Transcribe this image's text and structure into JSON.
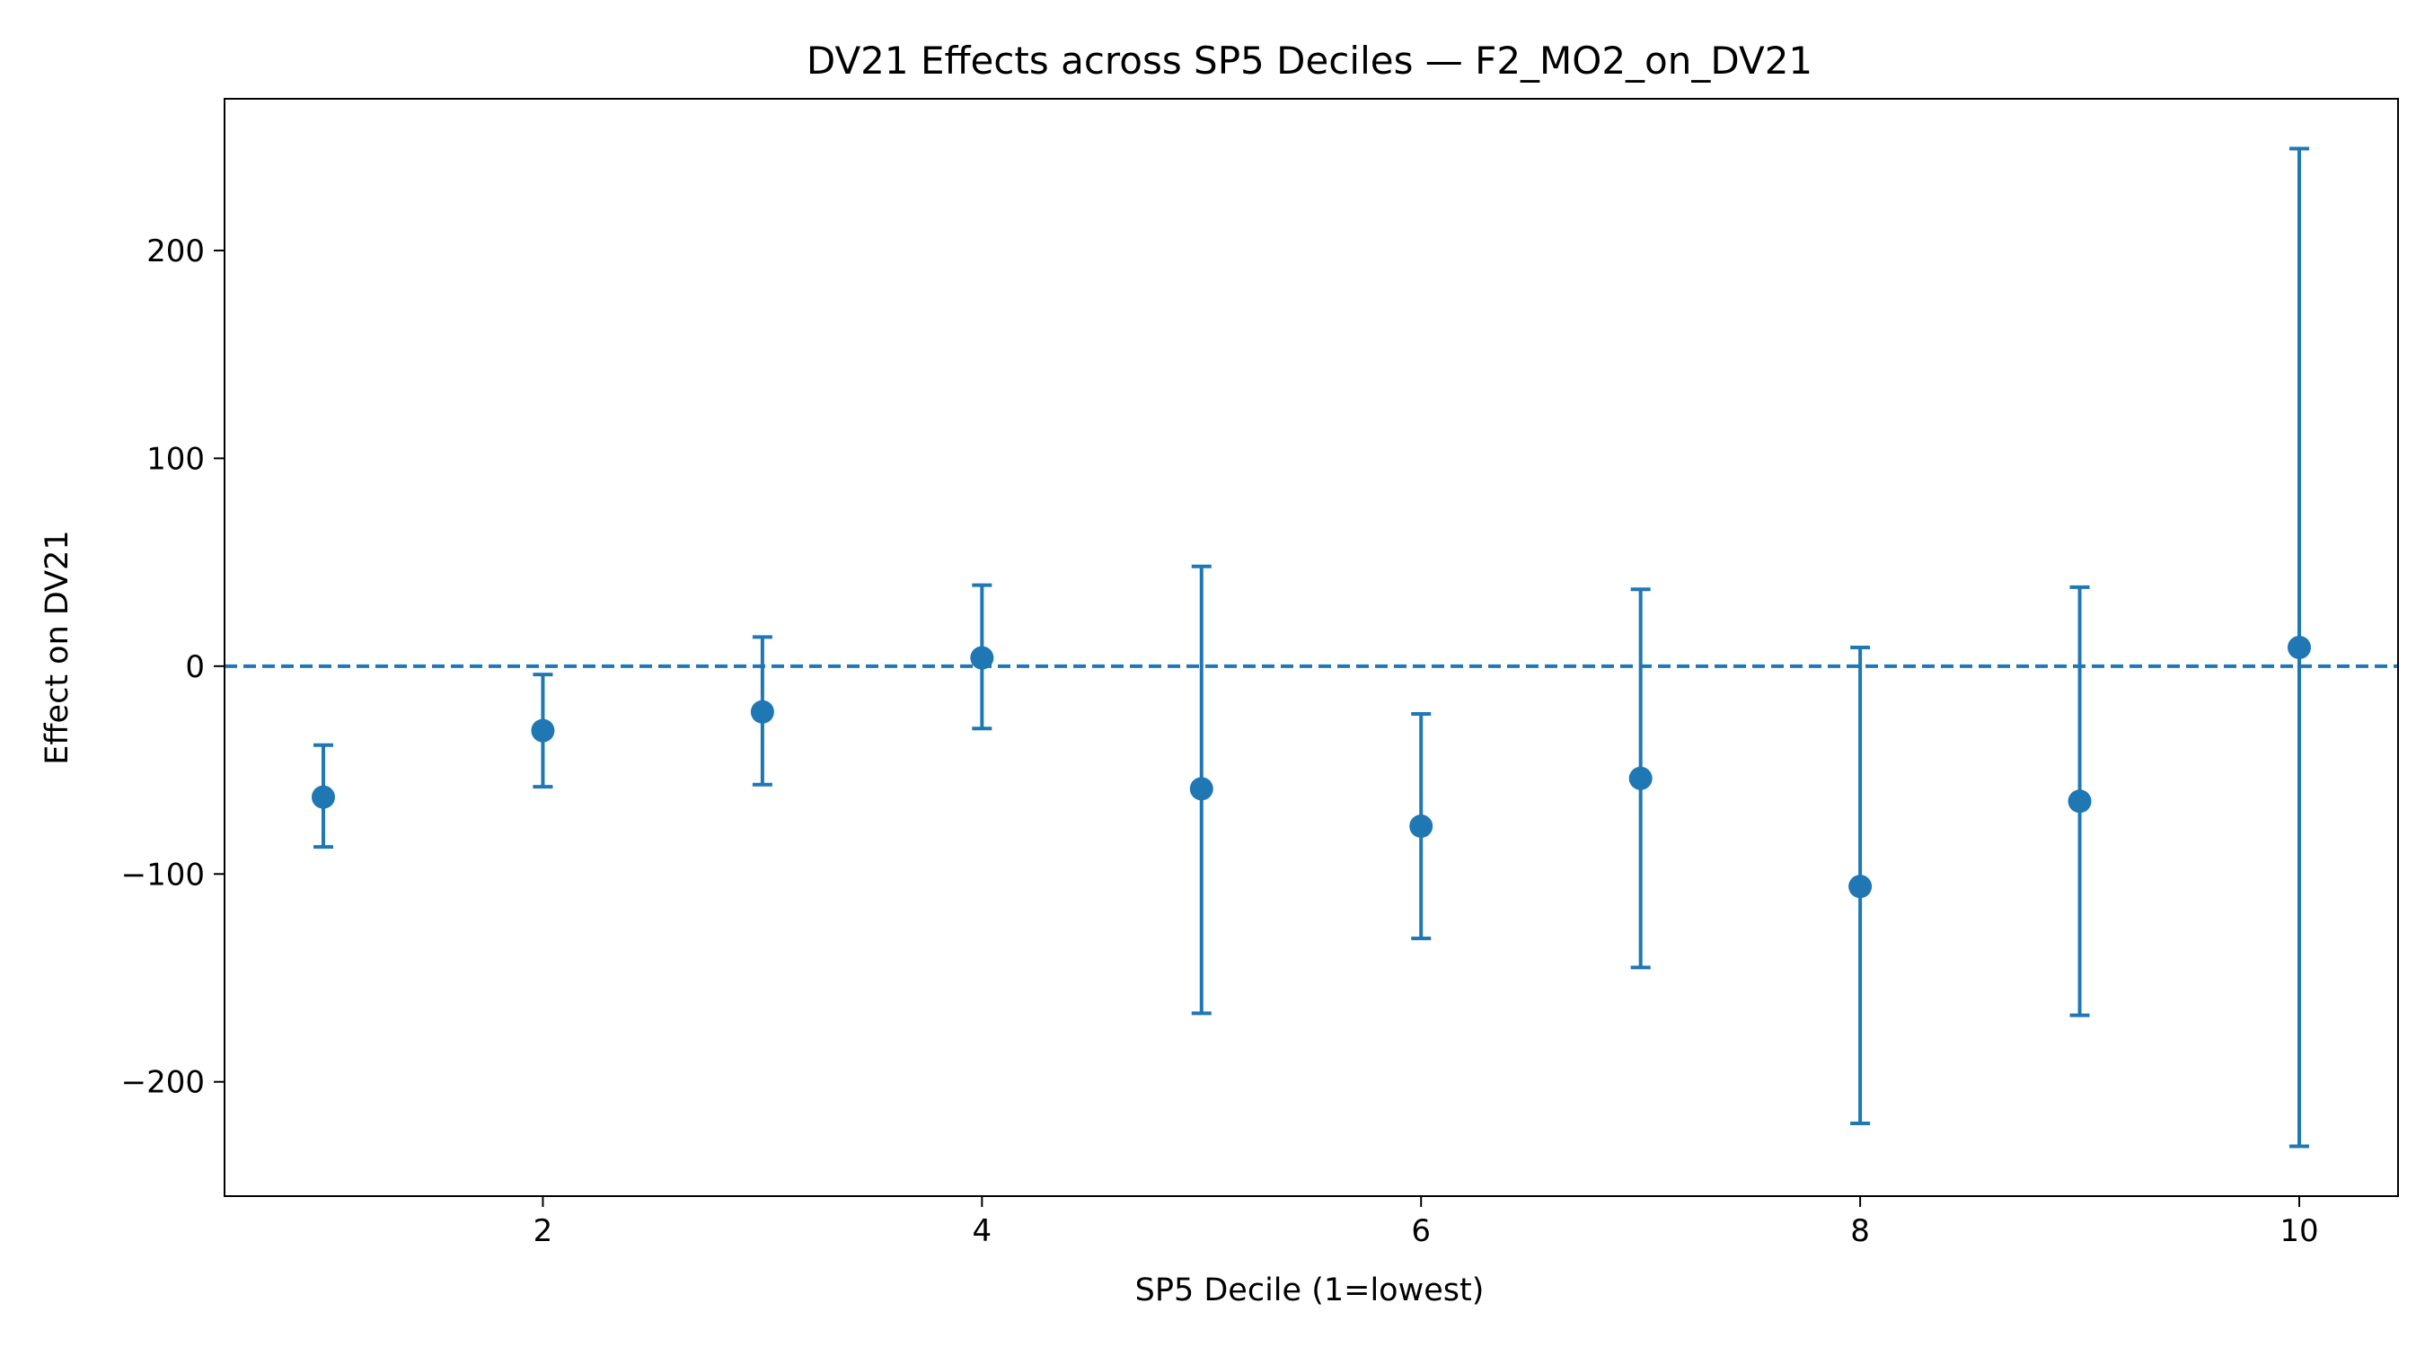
{
  "chart_data": {
    "type": "scatter",
    "title": "DV21 Effects across SP5 Deciles — F2_MO2_on_DV21",
    "xlabel": "SP5 Decile (1=lowest)",
    "ylabel": "Effect on DV21",
    "xlim": [
      0.55,
      10.45
    ],
    "ylim": [
      -255,
      273
    ],
    "x_ticks": [
      2,
      4,
      6,
      8,
      10
    ],
    "x_tick_labels": [
      "2",
      "4",
      "6",
      "8",
      "10"
    ],
    "y_ticks": [
      -200,
      -100,
      0,
      100,
      200
    ],
    "y_tick_labels": [
      "−200",
      "−100",
      "0",
      "100",
      "200"
    ],
    "grid": false,
    "reference_line": {
      "y": 0,
      "style": "dashed"
    },
    "series": [
      {
        "color": "#1f77b4",
        "points": [
          {
            "x": 1,
            "y": -63,
            "lower": -87,
            "upper": -38
          },
          {
            "x": 2,
            "y": -31,
            "lower": -58,
            "upper": -4
          },
          {
            "x": 3,
            "y": -22,
            "lower": -57,
            "upper": 14
          },
          {
            "x": 4,
            "y": 4,
            "lower": -30,
            "upper": 39
          },
          {
            "x": 5,
            "y": -59,
            "lower": -167,
            "upper": 48
          },
          {
            "x": 6,
            "y": -77,
            "lower": -131,
            "upper": -23
          },
          {
            "x": 7,
            "y": -54,
            "lower": -145,
            "upper": 37
          },
          {
            "x": 8,
            "y": -106,
            "lower": -220,
            "upper": 9
          },
          {
            "x": 9,
            "y": -65,
            "lower": -168,
            "upper": 38
          },
          {
            "x": 10,
            "y": 9,
            "lower": -231,
            "upper": 249
          }
        ]
      }
    ]
  }
}
